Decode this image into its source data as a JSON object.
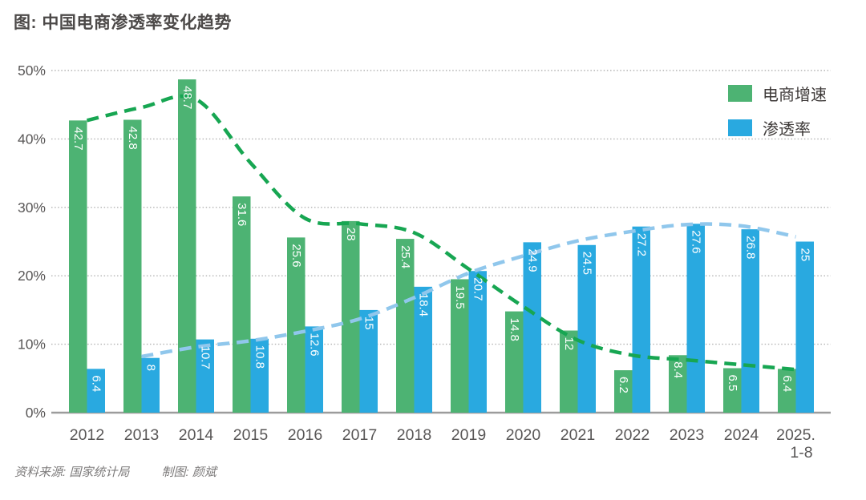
{
  "title": "图: 中国电商渗透率变化趋势",
  "footer": {
    "source": "资料来源: 国家统计局",
    "credit": "制图: 颜斌"
  },
  "legend": {
    "items": [
      {
        "id": "growth",
        "label": "电商增速",
        "color": "#4DB373"
      },
      {
        "id": "penetration",
        "label": "渗透率",
        "color": "#29A9E0"
      }
    ]
  },
  "colors": {
    "growth_bar": "#4DB373",
    "penetration_bar": "#29A9E0",
    "growth_trend": "#17A652",
    "penetration_trend": "#90C7EC",
    "grid_line": "#b3b3b3",
    "axis_line": "#9c9c9c",
    "axis_text": "#595757",
    "bar_label_text": "#ffffff",
    "title_text": "#4c4948",
    "footer_text": "#7d7b7b"
  },
  "chart_data": {
    "type": "bar",
    "title": "图: 中国电商渗透率变化趋势",
    "categories": [
      "2012",
      "2013",
      "2014",
      "2015",
      "2016",
      "2017",
      "2018",
      "2019",
      "2020",
      "2021",
      "2022",
      "2023",
      "2024",
      "2025."
    ],
    "last_category_line2": "1-8",
    "series": [
      {
        "name": "电商增速",
        "color": "#4DB373",
        "values": [
          42.7,
          42.8,
          48.7,
          31.6,
          25.6,
          28,
          25.4,
          19.5,
          14.8,
          12,
          6.2,
          8.4,
          6.5,
          6.4
        ],
        "trend_color": "#17A652",
        "trend_start_index": 0,
        "trend": [
          42.7,
          44.6,
          45.8,
          36.5,
          28.4,
          27.6,
          26.3,
          21.0,
          15.5,
          10.6,
          8.4,
          7.7,
          7.0,
          6.3
        ]
      },
      {
        "name": "渗透率",
        "color": "#29A9E0",
        "values": [
          6.4,
          8,
          10.7,
          10.8,
          12.6,
          15,
          18.4,
          20.7,
          24.9,
          24.5,
          27.2,
          27.6,
          26.8,
          25
        ],
        "trend_color": "#90C7EC",
        "trend_start_index": 1,
        "trend": [
          8.2,
          9.6,
          10.5,
          11.9,
          13.7,
          16.8,
          20.4,
          22.9,
          25.1,
          26.5,
          27.5,
          27.3,
          25.7
        ]
      }
    ],
    "yticks": [
      0,
      10,
      20,
      30,
      40,
      50
    ],
    "ytick_suffix": "%",
    "ylim": [
      0,
      50
    ],
    "grid": true,
    "legend_position": "top-right"
  }
}
